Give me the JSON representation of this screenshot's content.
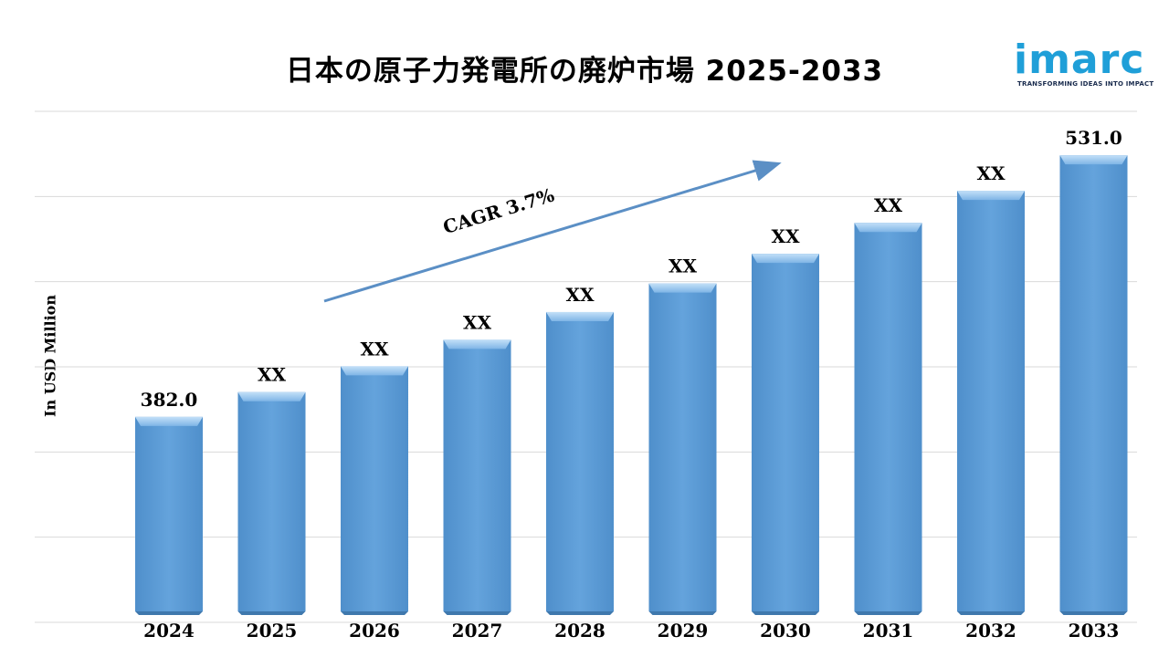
{
  "title": "日本の原子力発電所の廃炉市場 2025-2033",
  "logo": {
    "word": "imarc",
    "tagline": "TRANSFORMING IDEAS INTO IMPACT"
  },
  "colors": {
    "bar": "#5b9bd5",
    "bar_top": "#9fc8ee",
    "arrow": "#5b8fc5",
    "grid": "#d9d9d9",
    "logo": "#1f9fd8"
  },
  "chart_data": {
    "type": "bar",
    "title": "日本の原子力発電所の廃炉市場 2025-2033",
    "ylabel": "In USD Million",
    "xlabel": "",
    "categories": [
      "2024",
      "2025",
      "2026",
      "2027",
      "2028",
      "2029",
      "2030",
      "2031",
      "2032",
      "2033"
    ],
    "values": [
      382.0,
      396.1,
      410.8,
      425.9,
      441.7,
      458.0,
      474.9,
      492.5,
      510.7,
      531.0
    ],
    "data_labels": [
      "382.0",
      "XX",
      "XX",
      "XX",
      "XX",
      "XX",
      "XX",
      "XX",
      "XX",
      "531.0"
    ],
    "ylim": [
      265,
      556
    ],
    "grid": true,
    "annotation": "CAGR 3.7%"
  }
}
